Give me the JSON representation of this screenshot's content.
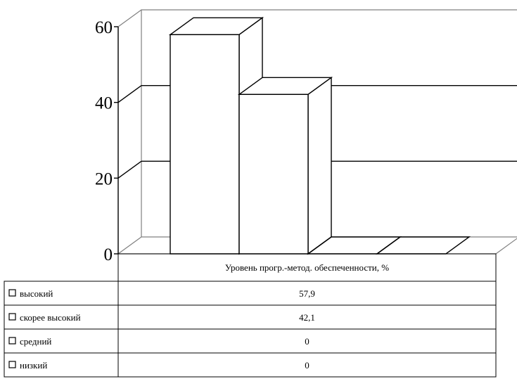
{
  "chart_data": {
    "type": "bar",
    "title": "",
    "xlabel": "",
    "ylabel": "",
    "categories": [
      "Уровень прогр.-метод. обеспеченности, %"
    ],
    "series": [
      {
        "name": "высокий",
        "values": [
          57.9
        ],
        "value_label": "57,9"
      },
      {
        "name": "скорее высокий",
        "values": [
          42.1
        ],
        "value_label": "42,1"
      },
      {
        "name": "средний",
        "values": [
          0
        ],
        "value_label": "0"
      },
      {
        "name": "низкий",
        "values": [
          0
        ],
        "value_label": "0"
      }
    ],
    "ylim": [
      0,
      60
    ],
    "yticks": [
      {
        "value": 0,
        "label": "0"
      },
      {
        "value": 20,
        "label": "20"
      },
      {
        "value": 40,
        "label": "40"
      },
      {
        "value": 60,
        "label": "60"
      }
    ],
    "grid": true,
    "legend": "data table below chart",
    "colors": {
      "bar_fill": "#ffffff",
      "stroke": "#000000"
    }
  }
}
